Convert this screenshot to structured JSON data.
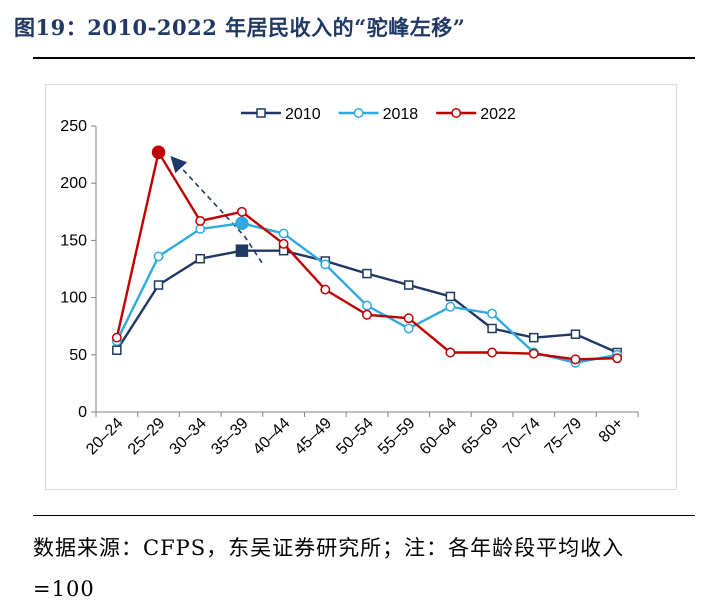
{
  "figure": {
    "title": "图19：2010-2022 年居民收入的“驼峰左移”",
    "source": "数据来源：CFPS，东吴证券研究所；注：各年龄段平均收入=100"
  },
  "chart_data": {
    "type": "line",
    "title": "",
    "xlabel": "",
    "ylabel": "",
    "ylim": [
      0,
      250
    ],
    "yticks": [
      0,
      50,
      100,
      150,
      200,
      250
    ],
    "categories": [
      "20–24",
      "25–29",
      "30–34",
      "35–39",
      "40–44",
      "45–49",
      "50–54",
      "55–59",
      "60–64",
      "65–69",
      "70–74",
      "75–79",
      "80+"
    ],
    "legend_position": "top",
    "series": [
      {
        "name": "2010",
        "color": "#203864",
        "marker": "square",
        "highlight_index": 3,
        "values": [
          54,
          111,
          134,
          141,
          141,
          132,
          121,
          111,
          101,
          73,
          65,
          68,
          52
        ]
      },
      {
        "name": "2018",
        "color": "#2eaae1",
        "marker": "circle",
        "highlight_index": 3,
        "values": [
          62,
          136,
          160,
          165,
          156,
          129,
          93,
          73,
          92,
          86,
          52,
          43,
          50
        ]
      },
      {
        "name": "2022",
        "color": "#c00000",
        "marker": "circle",
        "highlight_index": 1,
        "values": [
          65,
          227,
          167,
          175,
          147,
          107,
          85,
          82,
          52,
          52,
          51,
          46,
          47
        ]
      }
    ],
    "annotation": {
      "type": "dashed-arrow",
      "color": "#203864",
      "description": "peak shift from 35–39 toward 25–29"
    }
  }
}
